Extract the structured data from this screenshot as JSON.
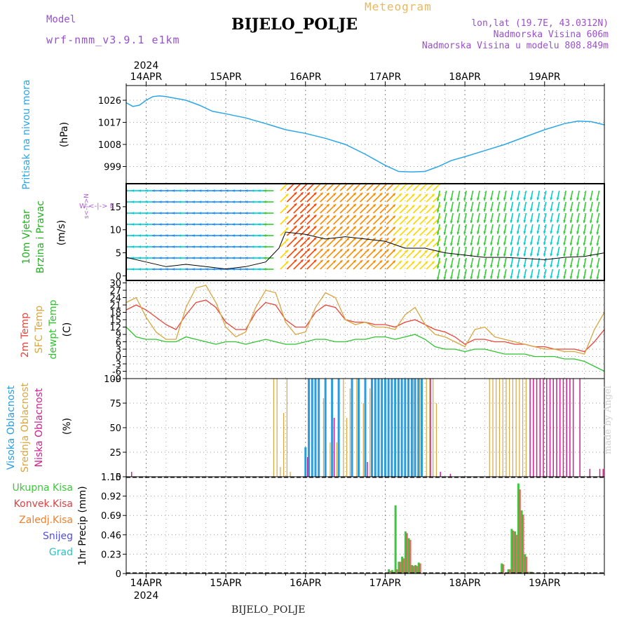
{
  "header": {
    "model_label": "Model",
    "model_version": "wrf-nmm_v3.9.1  e1km",
    "meteogram_label": "Meteogram",
    "station": "BIJELO_POLJE",
    "lonlat": "lon,lat (19.7E, 43.0312N)",
    "altitude": "Nadmorska Visina 606m",
    "model_altitude": "Nadmorska Visina u modelu 808.849m"
  },
  "footer": {
    "station": "BIJELO_POLJE",
    "credit": "made by Angel"
  },
  "x_axis": {
    "year": "2024",
    "day_labels": [
      "14APR",
      "15APR",
      "16APR",
      "17APR",
      "18APR",
      "19APR"
    ],
    "range_hours": [
      -6,
      138
    ]
  },
  "colors": {
    "pressure": "#2aa6e8",
    "temp_2m": "#e8443a",
    "temp_sfc": "#d9a640",
    "dewpoint": "#2fc42f",
    "cloud_high": "#2a9de0",
    "cloud_mid": "#d9a640",
    "cloud_low": "#d02090",
    "precip_total": "#3cc83c",
    "precip_conv": "#e04040",
    "wind_label": "#22b022",
    "compass": "#b060d0"
  },
  "chart_data": [
    {
      "type": "line",
      "name": "pressure-panel",
      "ylabel": "Pritisak na nivou mora",
      "yunit": "(hPa)",
      "y_ticks": [
        999,
        1008,
        1017,
        1026
      ],
      "ylim": [
        992,
        1032
      ],
      "grid": true,
      "series": [
        {
          "x": [
            -6,
            -4,
            -2,
            0,
            2,
            4,
            6,
            8,
            12,
            16,
            20,
            24,
            30,
            36,
            42,
            48,
            54,
            60,
            66,
            72,
            76,
            80,
            84,
            88,
            92,
            96,
            102,
            108,
            114,
            120,
            126,
            130,
            134,
            138
          ],
          "y": [
            1025,
            1023.5,
            1024,
            1026,
            1027.5,
            1027.8,
            1027.5,
            1027,
            1026,
            1024,
            1021.5,
            1020.5,
            1018.8,
            1016.5,
            1014,
            1012.5,
            1010.5,
            1008,
            1004,
            999.5,
            997,
            996.8,
            997,
            999,
            1001.5,
            1003,
            1005.5,
            1008,
            1011,
            1014,
            1016.5,
            1017.5,
            1017.3,
            1016
          ]
        }
      ]
    },
    {
      "type": "line",
      "name": "wind-panel",
      "ylabel": "10m Vjetar Brzina i Pravac",
      "yunit": "(m/s)",
      "compass": {
        "west": "W",
        "north": "N",
        "east": "E"
      },
      "y_ticks": [
        0,
        5,
        10,
        15
      ],
      "ylim": [
        -1,
        20
      ],
      "grid": true,
      "series": [
        {
          "x": [
            -6,
            0,
            6,
            12,
            18,
            24,
            30,
            36,
            40,
            42,
            48,
            54,
            60,
            66,
            72,
            78,
            84,
            90,
            96,
            102,
            108,
            114,
            120,
            126,
            132,
            138
          ],
          "y": [
            4,
            3,
            2,
            2.5,
            2,
            1.5,
            2,
            3,
            6,
            9.5,
            9,
            8,
            8.5,
            8,
            7.5,
            6,
            6,
            5,
            4.5,
            4,
            4,
            3.8,
            3.5,
            4,
            4.2,
            5
          ]
        }
      ]
    },
    {
      "type": "line",
      "name": "temperature-panel",
      "ylabel": "2m Temp / SFC Temp / dewpt Temp",
      "yunit": "(C)",
      "y_ticks": [
        -9,
        -6,
        -3,
        0,
        3,
        6,
        9,
        12,
        15,
        18,
        21,
        24,
        27,
        30
      ],
      "ylim": [
        -9,
        31
      ],
      "grid": true,
      "series": [
        {
          "name": "2m Temp",
          "x": [
            -6,
            -3,
            0,
            3,
            6,
            9,
            12,
            15,
            18,
            21,
            24,
            27,
            30,
            33,
            36,
            39,
            42,
            45,
            48,
            51,
            54,
            57,
            60,
            63,
            66,
            69,
            72,
            75,
            78,
            81,
            84,
            87,
            90,
            93,
            96,
            99,
            102,
            105,
            108,
            111,
            114,
            117,
            120,
            123,
            126,
            129,
            132,
            135,
            138
          ],
          "y": [
            19,
            21,
            19,
            16,
            13,
            11,
            17,
            22,
            23,
            20,
            14,
            11,
            11,
            18,
            22,
            21,
            15,
            12,
            12,
            18,
            21,
            20,
            15,
            14,
            14,
            13,
            13,
            12,
            14,
            15,
            13,
            11,
            10,
            8,
            5,
            7,
            7,
            6,
            6,
            5,
            5,
            4,
            4,
            3,
            3,
            3,
            2,
            6,
            11
          ]
        },
        {
          "name": "SFC Temp",
          "x": [
            -6,
            -3,
            0,
            3,
            6,
            9,
            12,
            15,
            18,
            21,
            24,
            27,
            30,
            33,
            36,
            39,
            42,
            45,
            48,
            51,
            54,
            57,
            60,
            63,
            66,
            69,
            72,
            75,
            78,
            81,
            84,
            87,
            90,
            93,
            96,
            99,
            102,
            105,
            108,
            111,
            114,
            117,
            120,
            123,
            126,
            129,
            132,
            135,
            138
          ],
          "y": [
            22,
            24,
            16,
            10,
            7,
            7,
            20,
            28,
            29,
            22,
            12,
            8,
            10,
            20,
            27,
            26,
            14,
            9,
            10,
            20,
            26,
            24,
            15,
            13,
            14,
            12,
            12,
            11,
            17,
            20,
            13,
            9,
            8,
            6,
            4,
            11,
            12,
            8,
            7,
            6,
            5,
            4,
            3,
            3,
            2,
            2,
            1,
            11,
            18
          ]
        },
        {
          "name": "dewpt Temp",
          "x": [
            -6,
            -3,
            0,
            3,
            6,
            9,
            12,
            15,
            18,
            21,
            24,
            27,
            30,
            33,
            36,
            39,
            42,
            45,
            48,
            51,
            54,
            57,
            60,
            63,
            66,
            69,
            72,
            75,
            78,
            81,
            84,
            87,
            90,
            93,
            96,
            99,
            102,
            105,
            108,
            111,
            114,
            117,
            120,
            123,
            126,
            129,
            132,
            135,
            138
          ],
          "y": [
            12,
            8,
            7,
            7,
            6,
            6,
            8,
            7,
            6,
            5,
            6,
            6,
            5,
            6,
            7,
            6,
            5,
            5,
            6,
            7,
            7,
            6,
            6,
            7,
            7,
            8,
            8,
            7,
            8,
            9,
            7,
            4,
            3,
            3,
            2,
            3,
            3,
            2,
            1,
            1,
            1,
            0,
            0,
            0,
            -1,
            -1,
            -2,
            -4,
            -6
          ]
        }
      ]
    },
    {
      "type": "bar",
      "name": "cloud-panel",
      "ylabel": "Visoka Oblacnost / Srednja Oblacnost / Niska Oblacnost",
      "yunit": "(%)",
      "y_ticks": [
        0,
        25,
        50,
        75,
        100
      ],
      "ylim": [
        0,
        100
      ],
      "grid": true,
      "series": [
        {
          "name": "Visoka Oblacnost",
          "x": [
            48,
            49,
            50,
            51,
            52,
            54,
            56,
            58,
            62,
            64,
            66,
            68,
            69,
            70,
            71,
            72,
            73,
            74,
            75,
            76,
            77,
            78,
            79,
            80,
            81,
            82,
            83
          ],
          "y": [
            30,
            100,
            100,
            100,
            100,
            100,
            100,
            100,
            100,
            100,
            100,
            100,
            100,
            100,
            100,
            100,
            100,
            100,
            100,
            100,
            100,
            100,
            100,
            100,
            100,
            100,
            100
          ]
        },
        {
          "name": "Srednja Oblacnost",
          "x": [
            38,
            39,
            40,
            41,
            42,
            43,
            53,
            55,
            57,
            59,
            60,
            61,
            63,
            65,
            67,
            80,
            82,
            84,
            85,
            86,
            87,
            103,
            104,
            105,
            106,
            107,
            108,
            109,
            110,
            111,
            112,
            113,
            114
          ],
          "y": [
            100,
            100,
            10,
            65,
            100,
            5,
            80,
            35,
            35,
            100,
            60,
            90,
            100,
            75,
            90,
            100,
            100,
            100,
            100,
            100,
            75,
            100,
            100,
            100,
            100,
            100,
            100,
            100,
            100,
            100,
            100,
            100,
            100
          ]
        },
        {
          "name": "Niska Oblacnost",
          "x": [
            -5,
            48,
            56,
            66,
            85,
            88,
            91,
            115,
            116,
            117,
            118,
            119,
            120,
            121,
            122,
            123,
            124,
            125,
            126,
            127,
            128,
            130,
            133,
            136,
            137
          ],
          "y": [
            5,
            20,
            60,
            15,
            100,
            5,
            3,
            100,
            100,
            100,
            100,
            100,
            100,
            100,
            100,
            100,
            100,
            100,
            100,
            100,
            100,
            100,
            8,
            8,
            8
          ]
        }
      ]
    },
    {
      "type": "bar",
      "name": "precip-panel",
      "ylabel": "1hr Precip",
      "yunit": "(mm)",
      "legend": [
        "Ukupna Kisa",
        "Konvek.Kisa",
        "Zaledj.Kisa",
        "Snijeg",
        "Grad"
      ],
      "y_ticks": [
        0,
        0.23,
        0.46,
        0.69,
        0.92,
        1.15
      ],
      "ylim": [
        0,
        1.15
      ],
      "grid": true,
      "series": [
        {
          "name": "Ukupna Kisa",
          "x": [
            73,
            74,
            75,
            76,
            77,
            78,
            79,
            80,
            81,
            82,
            107,
            109,
            110,
            111,
            112,
            113,
            114,
            115,
            116
          ],
          "y": [
            0.05,
            0.04,
            0.81,
            0.14,
            0.2,
            0.5,
            0.42,
            0.1,
            0.1,
            0.13,
            0.12,
            0.05,
            0.53,
            0.5,
            1.07,
            0.75,
            0.23,
            0.02,
            0.02
          ]
        },
        {
          "name": "Konvek.Kisa",
          "x": [
            73,
            74,
            75,
            76,
            77,
            78,
            79,
            80,
            81,
            82,
            107,
            109,
            110,
            111,
            112,
            113,
            114,
            115
          ],
          "y": [
            0.03,
            0.02,
            0.05,
            0.14,
            0.18,
            0.48,
            0.4,
            0.09,
            0.09,
            0.12,
            0.11,
            0.05,
            0.51,
            0.46,
            1.0,
            0.7,
            0.2,
            0.02
          ]
        }
      ]
    }
  ]
}
